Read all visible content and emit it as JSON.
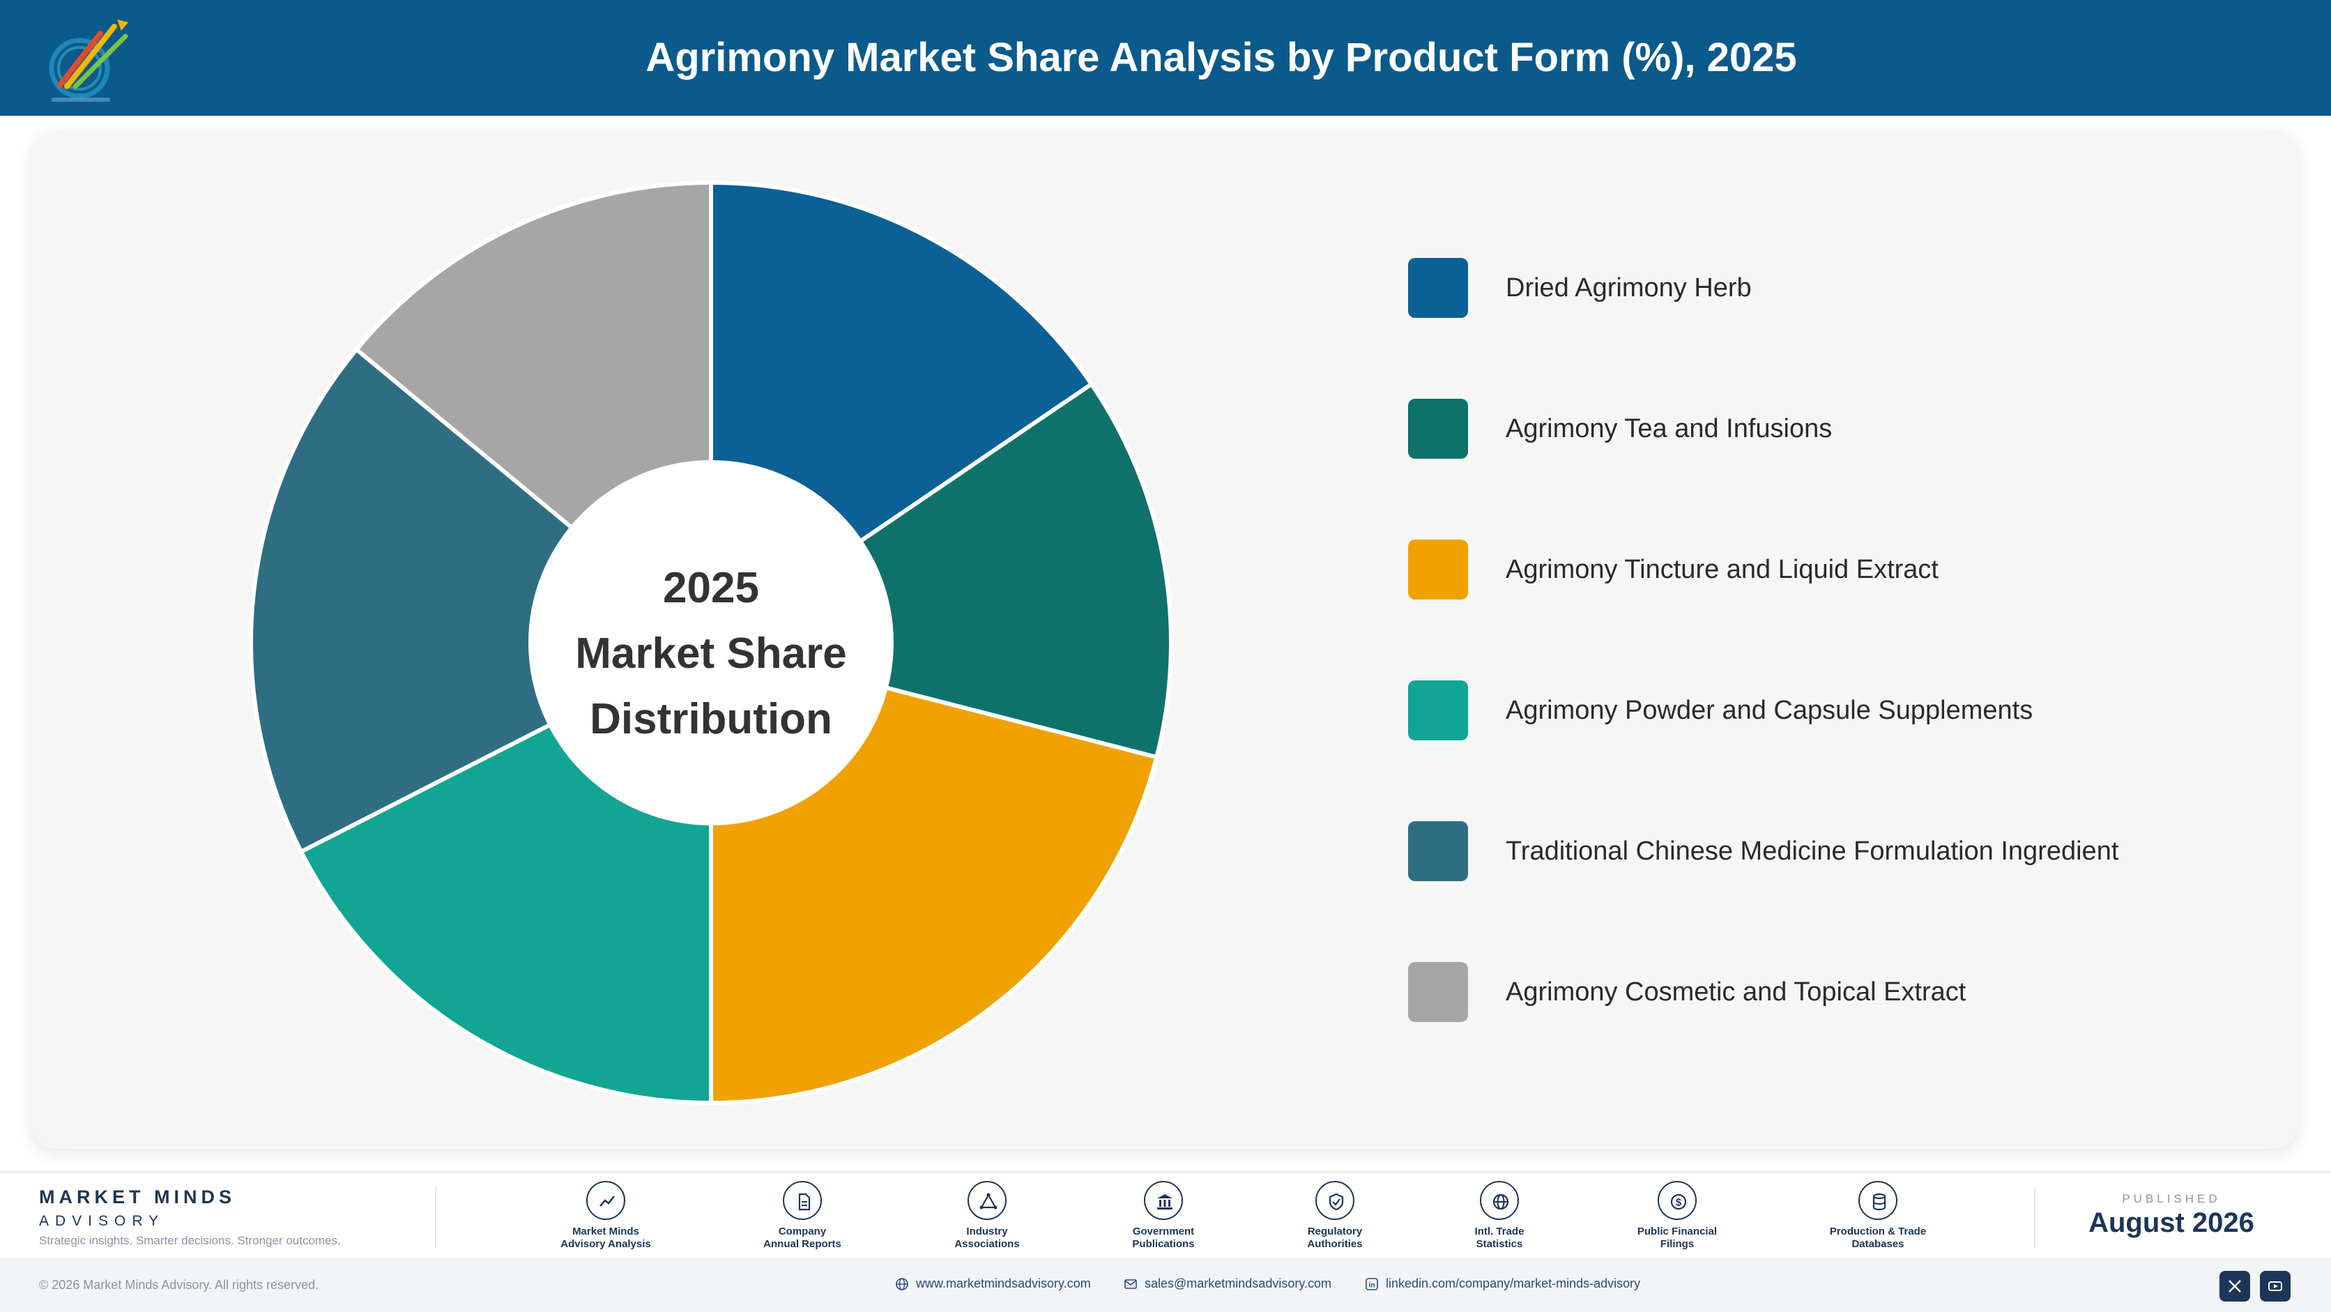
{
  "header": {
    "title": "Agrimony Market Share Analysis by Product Form (%), 2025",
    "logo_icon": "market-minds-logo-icon"
  },
  "chart_data": {
    "type": "pie",
    "style": "donut",
    "title": "Agrimony Market Share Analysis by Product Form (%), 2025",
    "center_text": [
      "2025",
      "Market Share",
      "Distribution"
    ],
    "legend_position": "right",
    "categories": [
      "Dried Agrimony Herb",
      "Agrimony Tea and Infusions",
      "Agrimony Tincture and Liquid Extract",
      "Agrimony Powder and Capsule Supplements",
      "Traditional Chinese Medicine Formulation Ingredient",
      "Agrimony Cosmetic and Topical Extract"
    ],
    "values": [
      15.5,
      13.5,
      21.0,
      17.5,
      18.5,
      14.0
    ],
    "colors": [
      "#0b6096",
      "#0e726b",
      "#f0a202",
      "#12a594",
      "#2f6e82",
      "#a6a6a6"
    ]
  },
  "footer": {
    "brand_name": "MARKET MINDS",
    "brand_sub": "ADVISORY",
    "tagline": "Strategic insights. Smarter decisions. Stronger outcomes.",
    "sources": [
      {
        "line1": "Market Minds",
        "line2": "Advisory Analysis",
        "icon": "trend-line-icon"
      },
      {
        "line1": "Company",
        "line2": "Annual Reports",
        "icon": "document-icon"
      },
      {
        "line1": "Industry",
        "line2": "Associations",
        "icon": "network-icon"
      },
      {
        "line1": "Government",
        "line2": "Publications",
        "icon": "government-building-icon"
      },
      {
        "line1": "Regulatory",
        "line2": "Authorities",
        "icon": "shield-check-icon"
      },
      {
        "line1": "Intl. Trade",
        "line2": "Statistics",
        "icon": "globe-icon"
      },
      {
        "line1": "Public Financial",
        "line2": "Filings",
        "icon": "dollar-coin-icon"
      },
      {
        "line1": "Production & Trade",
        "line2": "Databases",
        "icon": "database-icon"
      }
    ],
    "published_label": "PUBLISHED",
    "published_date": "August 2026"
  },
  "bottom": {
    "copyright": "© 2026 Market Minds Advisory. All rights reserved.",
    "website": "www.marketmindsadvisory.com",
    "email": "sales@marketmindsadvisory.com",
    "linkedin": "linkedin.com/company/market-minds-advisory",
    "social": [
      "x-icon",
      "youtube-icon"
    ]
  }
}
